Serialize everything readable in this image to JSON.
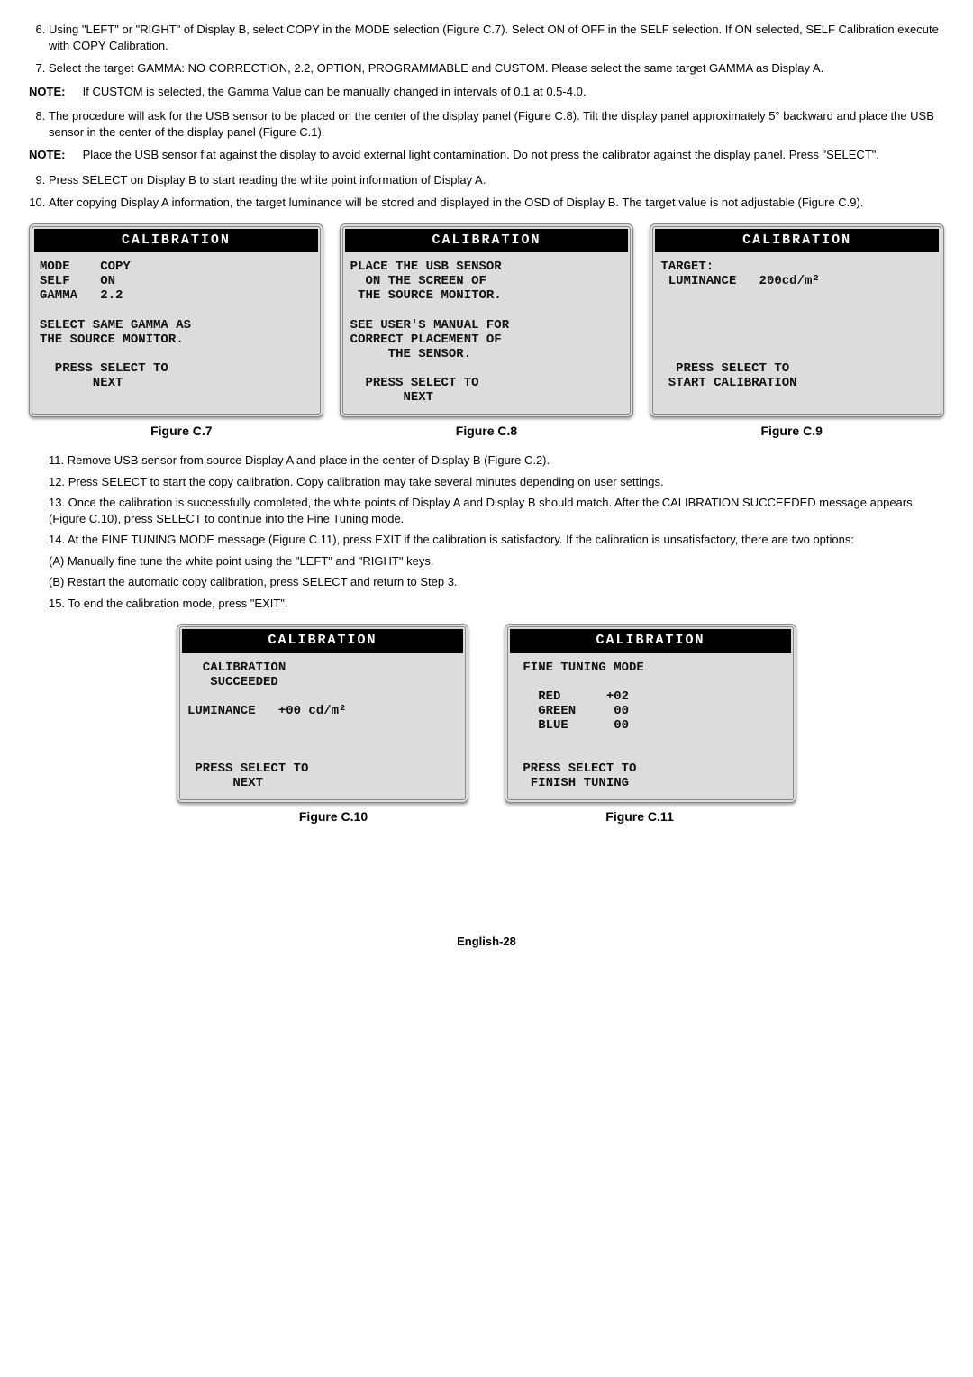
{
  "list6": "Using \"LEFT\" or \"RIGHT\" of Display B, select COPY in the MODE selection (Figure C.7). Select ON of OFF in the SELF selection. If ON selected, SELF Calibration execute with COPY Calibration.",
  "list7": "Select the target GAMMA: NO CORRECTION, 2.2, OPTION, PROGRAMMABLE and CUSTOM. Please select the same target GAMMA as Display A.",
  "noteLabel": "NOTE:",
  "note1": "If CUSTOM is selected, the Gamma Value can be manually changed in intervals of 0.1 at 0.5-4.0.",
  "list8": "The procedure will ask for the USB sensor to be placed on the center of the display panel (Figure C.8). Tilt the display panel approximately 5° backward and place the USB sensor in the center of the display panel (Figure C.1).",
  "note2": "Place the USB sensor flat against the display to avoid external light contamination. Do not press the calibrator against the display panel. Press \"SELECT\".",
  "list9": "Press SELECT on Display B to start reading the white point information of Display A.",
  "list10": "After copying Display A information, the target luminance will be stored and displayed in the OSD of Display B. The target value is not adjustable (Figure C.9).",
  "panelTitle": "CALIBRATION",
  "p7body": "MODE    COPY\nSELF    ON\nGAMMA   2.2\n\nSELECT SAME GAMMA AS\nTHE SOURCE MONITOR.\n\n  PRESS SELECT TO\n       NEXT",
  "p8body": "PLACE THE USB SENSOR\n  ON THE SCREEN OF\n THE SOURCE MONITOR.\n\nSEE USER'S MANUAL FOR\nCORRECT PLACEMENT OF\n     THE SENSOR.\n\n  PRESS SELECT TO\n       NEXT",
  "p9body": "TARGET:\n LUMINANCE   200cd/m²\n\n\n\n\n\n  PRESS SELECT TO\n START CALIBRATION",
  "cap7": "Figure C.7",
  "cap8": "Figure C.8",
  "cap9": "Figure C.9",
  "list11": "Remove USB sensor from source Display A and place in the center of Display B (Figure C.2).",
  "list12": "Press SELECT to start the copy calibration. Copy calibration may take several minutes depending on user settings.",
  "list13": "Once the calibration is successfully completed, the white points of Display A and Display B should match. After the CALIBRATION SUCCEEDED message appears (Figure C.10), press SELECT to continue into the Fine Tuning mode.",
  "list14": "At the FINE TUNING MODE message (Figure C.11), press EXIT if the calibration is satisfactory. If the calibration is unsatisfactory, there are two options:",
  "list14a": "(A) Manually fine tune the white point using the \"LEFT\" and \"RIGHT\" keys.",
  "list14b": "(B) Restart the automatic copy calibration, press SELECT and return to Step 3.",
  "list15": "To end the calibration mode, press \"EXIT\".",
  "p10body": "  CALIBRATION\n   SUCCEEDED\n\nLUMINANCE   +00 cd/m²\n\n\n\n PRESS SELECT TO\n      NEXT",
  "p11body": " FINE TUNING MODE\n\n   RED      +02\n   GREEN     00\n   BLUE      00\n\n\n PRESS SELECT TO\n  FINISH TUNING",
  "cap10": "Figure C.10",
  "cap11": "Figure C.11",
  "pageNum": "English-28"
}
